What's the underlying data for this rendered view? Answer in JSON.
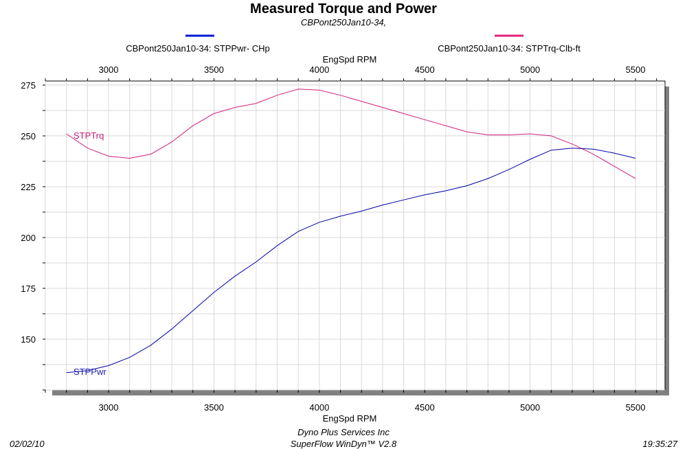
{
  "colors": {
    "power": "#0000a8",
    "torque": "#d0207a",
    "power_legend": "#0018d8",
    "torque_legend": "#e0207a",
    "grid": "#d8d8d8",
    "frame_shadow": "#808080"
  },
  "footer": {
    "date": "02/02/10",
    "time": "19:35:27",
    "company": "Dyno Plus Services Inc",
    "software": "SuperFlow WinDyn™ V2.8"
  },
  "chart_data": {
    "type": "line",
    "title": "Measured Torque and Power",
    "subtitle": "CBPont250Jan10-34,",
    "xlabel": "EngSpd  RPM",
    "x_ticks": [
      "3000",
      "3500",
      "4000",
      "4500",
      "5000",
      "5500"
    ],
    "y_ticks": [
      "150",
      "175",
      "200",
      "225",
      "250",
      "275"
    ],
    "xlim": [
      2700,
      5640
    ],
    "ylim": [
      125,
      277
    ],
    "x_grid_step": 100,
    "y_grid_step": 12.5,
    "grid": true,
    "legend_placement": "top",
    "x": [
      2800,
      2900,
      3000,
      3100,
      3200,
      3300,
      3400,
      3500,
      3600,
      3700,
      3800,
      3900,
      4000,
      4100,
      4200,
      4300,
      4400,
      4500,
      4600,
      4700,
      4800,
      4900,
      5000,
      5100,
      5200,
      5300,
      5400,
      5500
    ],
    "series": [
      {
        "key": "torque",
        "name": "CBPont250Jan10-34: STPTrq-Clb-ft",
        "label": "STPTrq",
        "values": [
          251,
          244,
          240,
          239,
          241,
          247,
          255,
          261,
          264,
          266,
          270,
          273,
          272.5,
          270,
          267,
          264,
          261,
          258,
          255,
          252,
          250.5,
          250.5,
          251,
          250,
          246,
          241,
          235,
          229
        ]
      },
      {
        "key": "power",
        "name": "CBPont250Jan10-34: STPPwr- CHp",
        "label": "STPPwr",
        "values": [
          133.5,
          134.5,
          137,
          141,
          147,
          155,
          164,
          173,
          181,
          188,
          196,
          203,
          207.5,
          210.5,
          213,
          216,
          218.5,
          221,
          223,
          225.5,
          229,
          233.5,
          238.5,
          243,
          244,
          243.5,
          241.5,
          239
        ]
      }
    ]
  }
}
